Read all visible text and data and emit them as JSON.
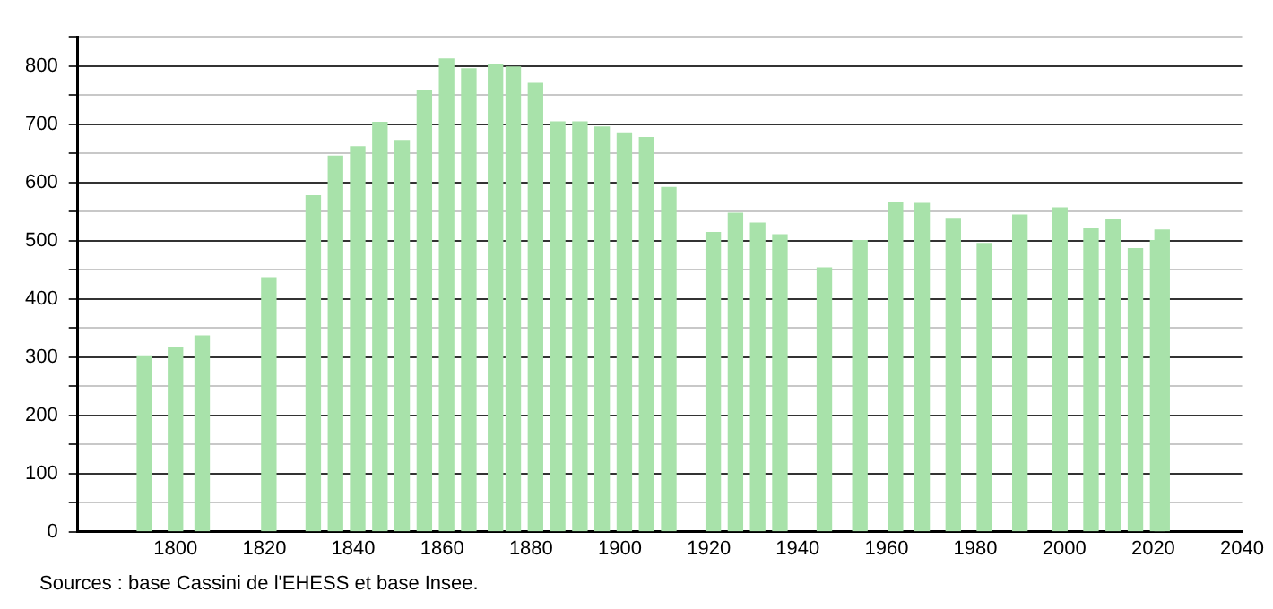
{
  "chart_data": {
    "type": "bar",
    "x": [
      1793,
      1800,
      1806,
      1821,
      1831,
      1836,
      1841,
      1846,
      1851,
      1856,
      1861,
      1866,
      1872,
      1876,
      1881,
      1886,
      1891,
      1896,
      1901,
      1906,
      1911,
      1921,
      1926,
      1931,
      1936,
      1946,
      1954,
      1962,
      1968,
      1975,
      1982,
      1990,
      1999,
      2006,
      2011,
      2016,
      2021,
      2022
    ],
    "values": [
      302,
      316,
      336,
      436,
      577,
      645,
      661,
      703,
      672,
      757,
      812,
      795,
      803,
      798,
      770,
      704,
      704,
      695,
      685,
      677,
      591,
      514,
      547,
      530,
      510,
      453,
      500,
      566,
      564,
      538,
      495,
      544,
      556,
      520,
      536,
      486,
      500,
      518
    ],
    "color": "#a8e2aa",
    "xlim": [
      1778,
      2040
    ],
    "xticks": [
      1800,
      1820,
      1840,
      1860,
      1880,
      1900,
      1920,
      1940,
      1960,
      1980,
      2000,
      2020,
      2040
    ],
    "ylim": [
      0,
      850
    ],
    "yticks": [
      0,
      {
        "value": 50,
        "label": null
      },
      100,
      {
        "value": 150,
        "label": null
      },
      200,
      {
        "value": 250,
        "label": null
      },
      300,
      {
        "value": 350,
        "label": null
      },
      400,
      {
        "value": 450,
        "label": null
      },
      500,
      {
        "value": 550,
        "label": null
      },
      600,
      {
        "value": 650,
        "label": null
      },
      700,
      {
        "value": 750,
        "label": null
      },
      800,
      {
        "value": 850,
        "label": null
      }
    ],
    "grid": "y",
    "annotations": [
      "Sources : base Cassini de l'EHESS et base Insee."
    ]
  }
}
